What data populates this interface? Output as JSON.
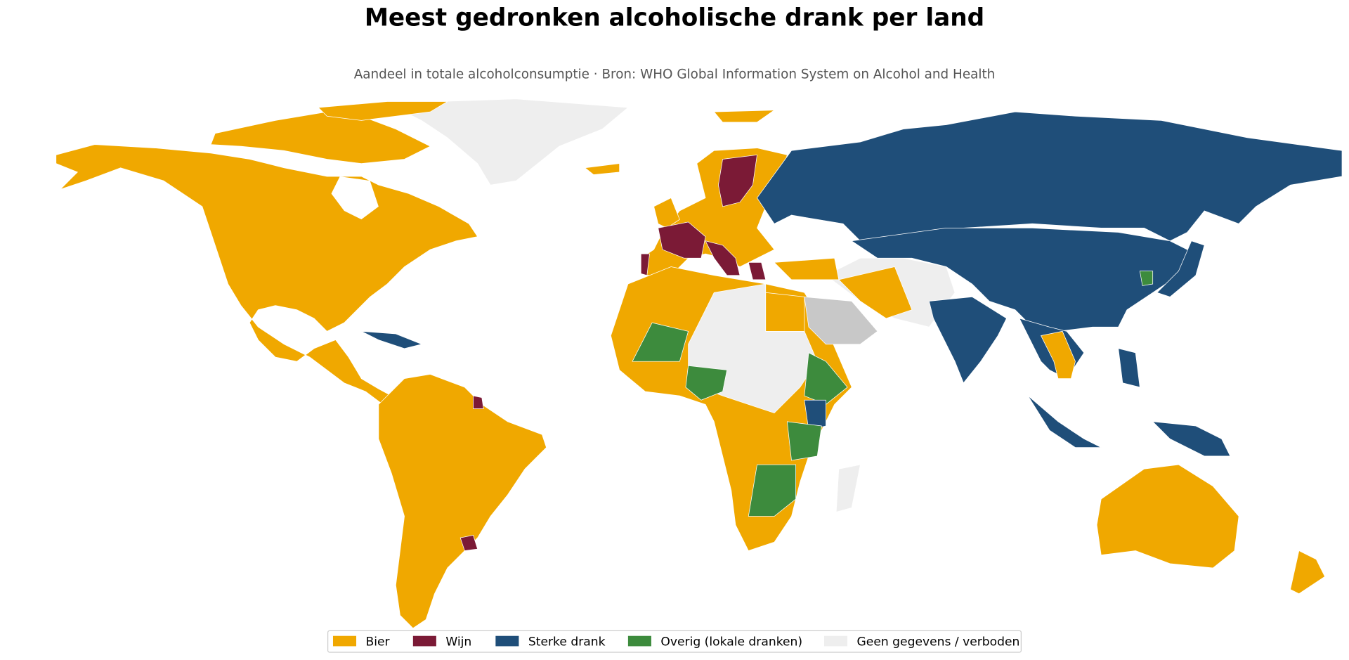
{
  "title": "Meest gedronken alcoholische drank per land",
  "subtitle": "Aandeel in totale alcoholconsumptie · Bron: WHO Global Information System on Alcohol and Health",
  "legend": [
    {
      "name": "Bier",
      "color": "#f0a800"
    },
    {
      "name": "Wijn",
      "color": "#7b1a36"
    },
    {
      "name": "Sterke drank",
      "color": "#1f4e79"
    },
    {
      "name": "Overig (lokale dranken)",
      "color": "#3d8b3d"
    },
    {
      "name": "Geen gegevens / verboden",
      "color": "#eeeeee"
    }
  ]
}
